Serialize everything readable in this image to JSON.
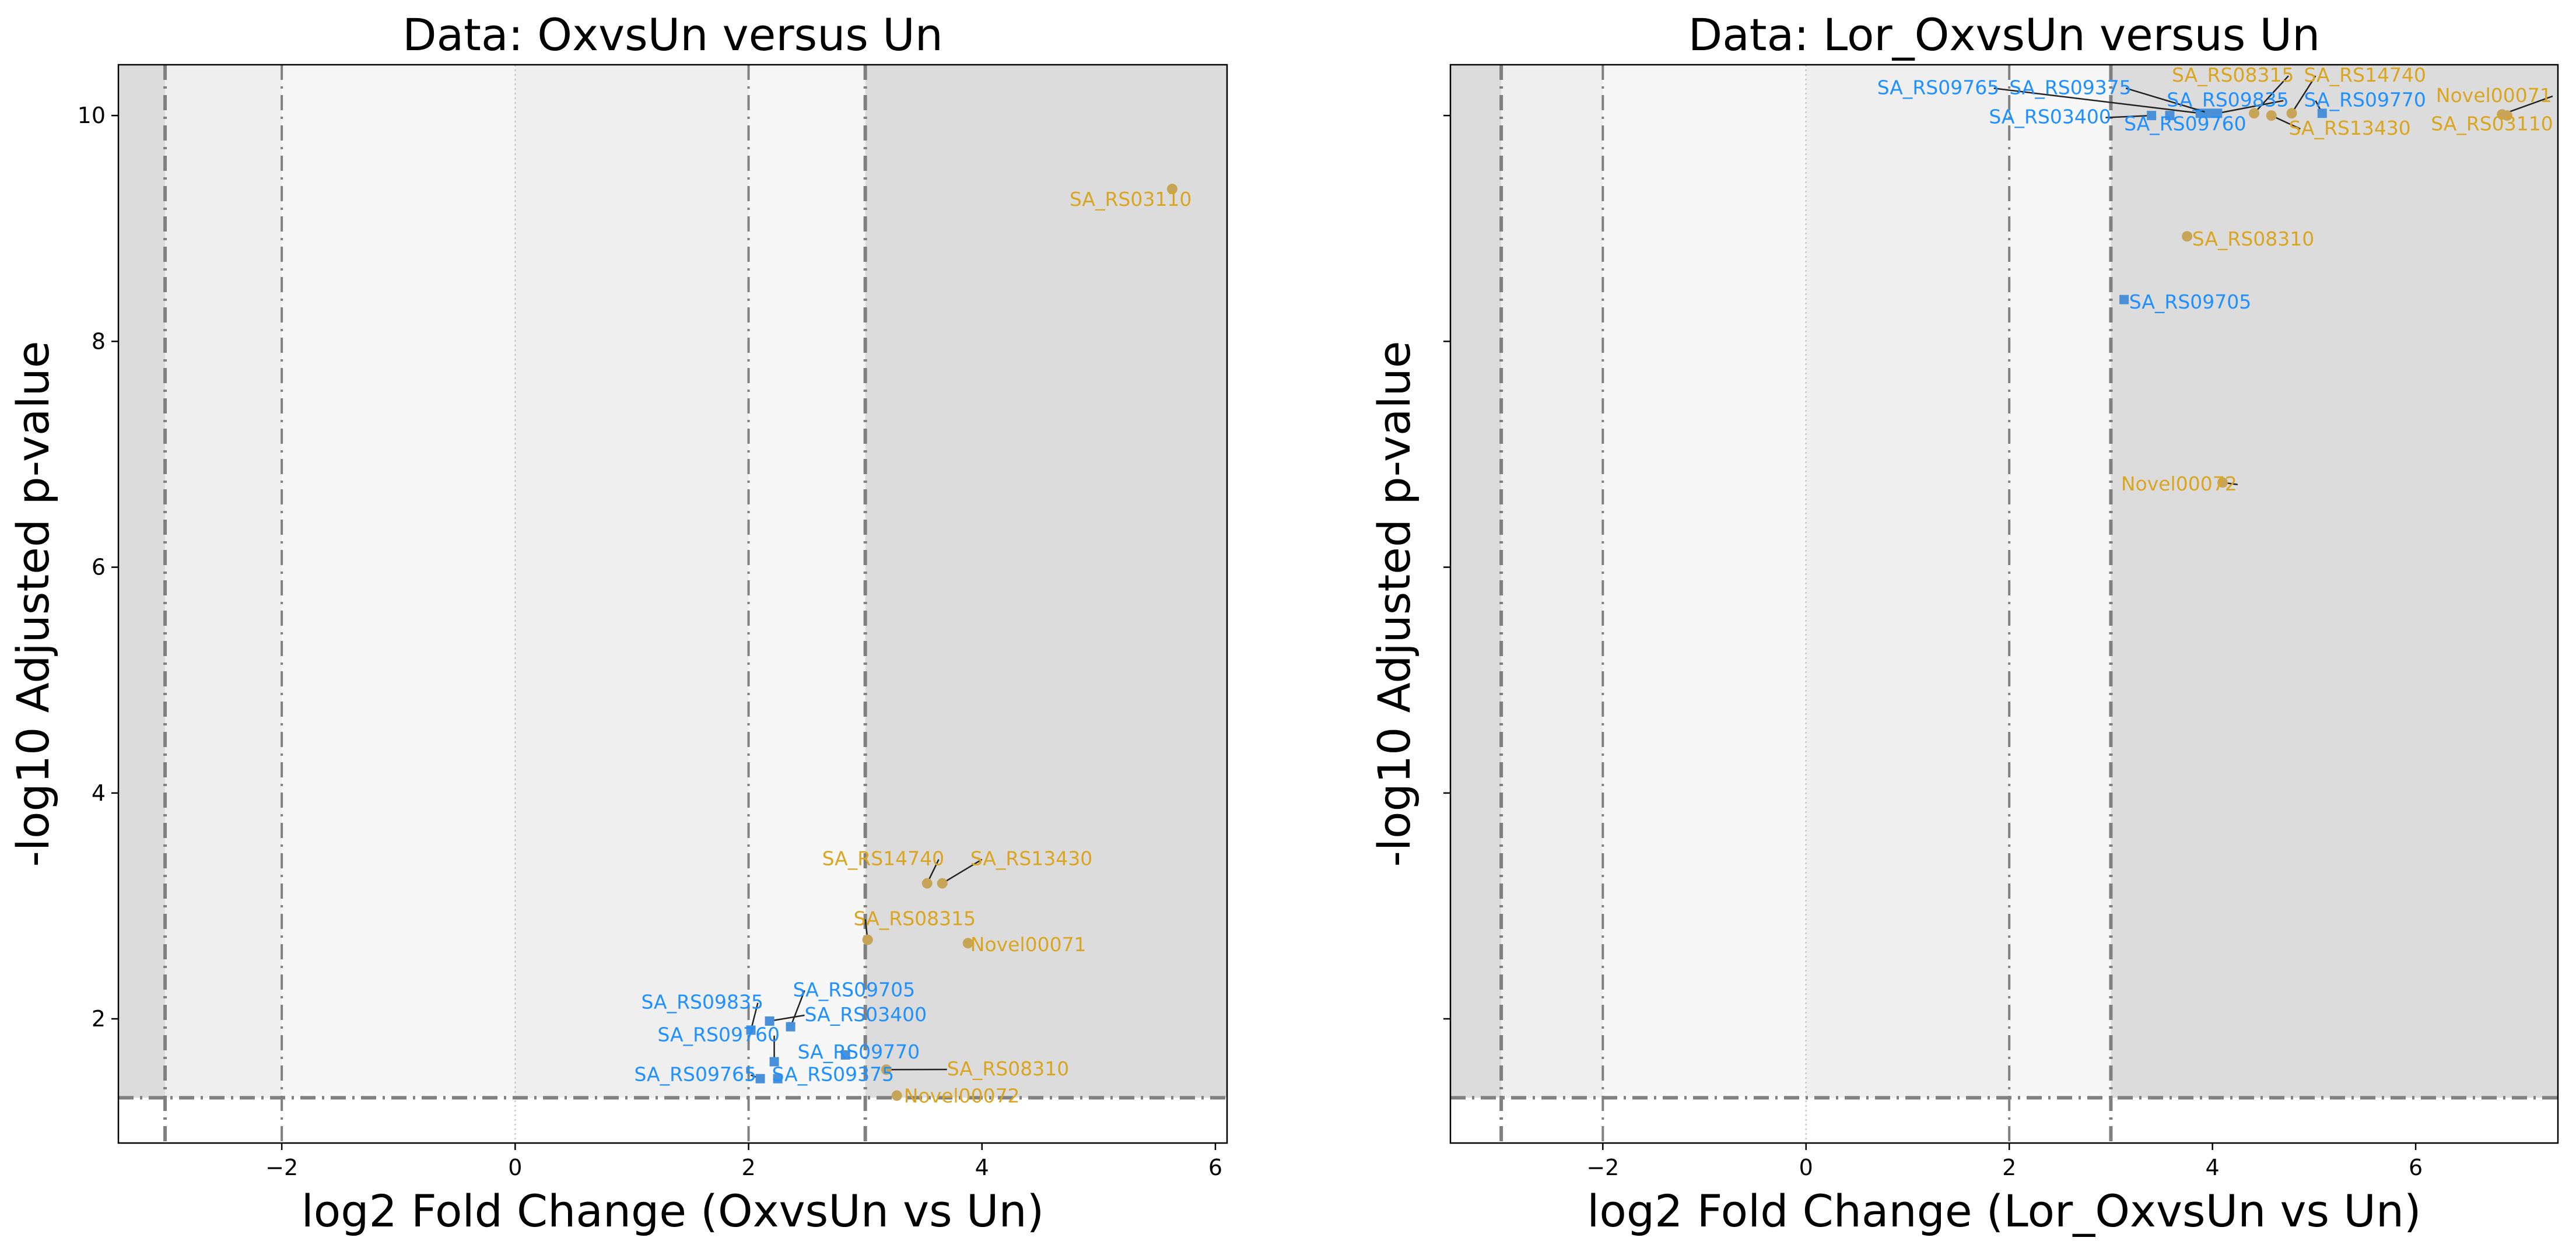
{
  "colors": {
    "up": "#DAA520",
    "up_marker": "#C8A456",
    "down": "#1E90FF",
    "down_marker": "#4A90D9",
    "zone_outer": "#DCDCDC",
    "zone_mid": "#EFEFEF",
    "zone_inner": "#F7F7F7",
    "threshold_line": "#808080"
  },
  "chart_data": [
    {
      "type": "scatter",
      "title": "Data: OxvsUn versus Un",
      "xlabel": "log2 Fold Change (OxvsUn vs Un)",
      "ylabel": "-log10 Adjusted p-value",
      "xlim": [
        -3.4,
        6.1
      ],
      "ylim": [
        0.9,
        10.45
      ],
      "xticks": [
        -2,
        0,
        2,
        4,
        6
      ],
      "xtick_labels": [
        "−2",
        "0",
        "2",
        "4",
        "6"
      ],
      "yticks": [
        2,
        4,
        6,
        8,
        10
      ],
      "ytick_labels": [
        "2",
        "4",
        "6",
        "8",
        "10"
      ],
      "show_ytick_labels": true,
      "thresholds": {
        "fc_strong": 3,
        "fc_weak": 2,
        "p": 1.301
      },
      "points": [
        {
          "label": "SA_RS03110",
          "x": 5.63,
          "y": 9.35,
          "group": "up",
          "lx": 4.75,
          "ly": 9.2
        },
        {
          "label": "SA_RS14740",
          "x": 3.53,
          "y": 3.2,
          "group": "up",
          "lx": 2.63,
          "ly": 3.36,
          "leader": true
        },
        {
          "label": "SA_RS13430",
          "x": 3.66,
          "y": 3.2,
          "group": "up",
          "lx": 3.9,
          "ly": 3.36,
          "leader": true
        },
        {
          "label": "SA_RS08315",
          "x": 3.02,
          "y": 2.7,
          "group": "up",
          "lx": 2.9,
          "ly": 2.83,
          "leader": true
        },
        {
          "label": "Novel00071",
          "x": 3.88,
          "y": 2.67,
          "group": "up",
          "lx": 3.9,
          "ly": 2.6
        },
        {
          "label": "SA_RS08310",
          "x": 3.18,
          "y": 1.55,
          "group": "up",
          "lx": 3.7,
          "ly": 1.5,
          "leader": true
        },
        {
          "label": "Novel00072",
          "x": 3.27,
          "y": 1.32,
          "group": "up",
          "lx": 3.33,
          "ly": 1.26
        },
        {
          "label": "SA_RS09705",
          "x": 2.36,
          "y": 1.93,
          "group": "down",
          "lx": 2.38,
          "ly": 2.2,
          "leader": true
        },
        {
          "label": "SA_RS03400",
          "x": 2.18,
          "y": 1.98,
          "group": "down",
          "lx": 2.48,
          "ly": 1.98,
          "leader": true
        },
        {
          "label": "SA_RS09835",
          "x": 2.02,
          "y": 1.9,
          "group": "down",
          "lx": 1.08,
          "ly": 2.09,
          "leader": true
        },
        {
          "label": "SA_RS09760",
          "x": 2.22,
          "y": 1.62,
          "group": "down",
          "lx": 1.22,
          "ly": 1.8,
          "leader": true
        },
        {
          "label": "SA_RS09770",
          "x": 2.83,
          "y": 1.68,
          "group": "down",
          "lx": 2.42,
          "ly": 1.65
        },
        {
          "label": "SA_RS09765",
          "x": 2.1,
          "y": 1.47,
          "group": "down",
          "lx": 1.02,
          "ly": 1.45,
          "leader": true
        },
        {
          "label": "SA_RS09375",
          "x": 2.25,
          "y": 1.47,
          "group": "down",
          "lx": 2.2,
          "ly": 1.45
        }
      ]
    },
    {
      "type": "scatter",
      "title": "Data: Lor_OxvsUn versus Un",
      "xlabel": "log2 Fold Change (Lor_OxvsUn vs Un)",
      "ylabel": "-log10 Adjusted p-value",
      "xlim": [
        -3.5,
        7.4
      ],
      "ylim": [
        0.9,
        10.45
      ],
      "xticks": [
        -2,
        0,
        2,
        4,
        6
      ],
      "xtick_labels": [
        "−2",
        "0",
        "2",
        "4",
        "6"
      ],
      "yticks": [
        2,
        4,
        6,
        8,
        10
      ],
      "ytick_labels": [
        "2",
        "4",
        "6",
        "8",
        "10"
      ],
      "show_ytick_labels": false,
      "thresholds": {
        "fc_strong": 3,
        "fc_weak": 2,
        "p": 1.301
      },
      "points": [
        {
          "label": "SA_RS08315",
          "x": 4.41,
          "y": 10.02,
          "group": "up",
          "lx": 3.6,
          "ly": 10.3,
          "leader": true
        },
        {
          "label": "SA_RS14740",
          "x": 4.78,
          "y": 10.02,
          "group": "up",
          "lx": 4.9,
          "ly": 10.3,
          "leader": true
        },
        {
          "label": "Novel00071",
          "x": 6.85,
          "y": 10.01,
          "group": "up",
          "lx": 6.2,
          "ly": 10.12,
          "leader": true
        },
        {
          "label": "SA_RS13430",
          "x": 4.58,
          "y": 10.0,
          "group": "up",
          "lx": 4.75,
          "ly": 9.83,
          "leader": true
        },
        {
          "label": "SA_RS03110",
          "x": 6.9,
          "y": 10.0,
          "group": "up",
          "lx": 6.15,
          "ly": 9.87
        },
        {
          "label": "SA_RS08310",
          "x": 3.75,
          "y": 8.93,
          "group": "up",
          "lx": 3.8,
          "ly": 8.85
        },
        {
          "label": "Novel00072",
          "x": 4.1,
          "y": 6.75,
          "group": "up",
          "lx": 3.1,
          "ly": 6.68,
          "leader": true
        },
        {
          "label": "SA_RS09765",
          "x": 3.88,
          "y": 10.02,
          "group": "down",
          "lx": 0.7,
          "ly": 10.19,
          "leader": true
        },
        {
          "label": "SA_RS09375",
          "x": 3.97,
          "y": 10.02,
          "group": "down",
          "lx": 2.0,
          "ly": 10.19,
          "leader": true
        },
        {
          "label": "SA_RS09835",
          "x": 4.05,
          "y": 10.02,
          "group": "down",
          "lx": 3.55,
          "ly": 10.08,
          "leader": true
        },
        {
          "label": "SA_RS09770",
          "x": 5.08,
          "y": 10.02,
          "group": "down",
          "lx": 4.9,
          "ly": 10.08,
          "leader": true
        },
        {
          "label": "SA_RS03400",
          "x": 3.4,
          "y": 10.0,
          "group": "down",
          "lx": 1.8,
          "ly": 9.93,
          "leader": true
        },
        {
          "label": "SA_RS09760",
          "x": 3.58,
          "y": 10.0,
          "group": "down",
          "lx": 3.13,
          "ly": 9.87
        },
        {
          "label": "SA_RS09705",
          "x": 3.13,
          "y": 8.37,
          "group": "down",
          "lx": 3.18,
          "ly": 8.29
        }
      ]
    }
  ]
}
